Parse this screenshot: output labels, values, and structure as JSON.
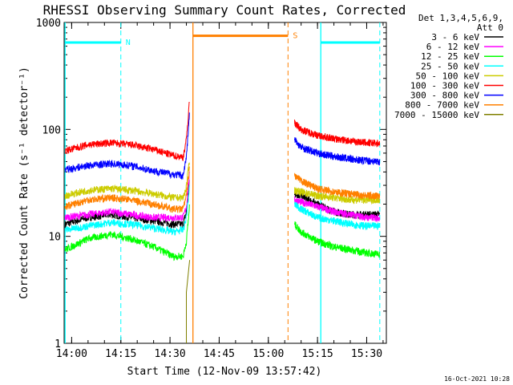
{
  "chart_data": {
    "type": "line",
    "title": "RHESSI Observing Summary Count Rates, Corrected",
    "xlabel": "Start Time (12-Nov-09 13:57:42)",
    "ylabel": "Corrected Count Rate (s⁻¹ detector⁻¹)",
    "y_scale": "log",
    "ylim": [
      1,
      1000
    ],
    "xlim": [
      "13:57:42",
      "15:36:00"
    ],
    "x_ticks": [
      "14:00",
      "14:15",
      "14:30",
      "14:45",
      "15:00",
      "15:15",
      "15:30"
    ],
    "y_ticks": [
      "1",
      "10",
      "100",
      "1000"
    ],
    "grid": false,
    "legend_header": [
      "Det 1,3,4,5,6,9,",
      "Att 0"
    ],
    "legend_placement": "right",
    "footer": "16-Oct-2021 10:28",
    "series": [
      {
        "name": "3 - 6 keV",
        "color": "#000000",
        "before": {
          "x": [
            "13:58",
            "14:05",
            "14:12",
            "14:18",
            "14:25",
            "14:31",
            "14:34",
            "14:35",
            "14:36"
          ],
          "y": [
            13,
            15,
            16,
            15,
            14,
            13,
            13,
            17,
            35
          ]
        },
        "after": {
          "x": [
            "15:08",
            "15:10",
            "15:15",
            "15:20",
            "15:25",
            "15:30",
            "15:34"
          ],
          "y": [
            25,
            24,
            20,
            17,
            16,
            16,
            16
          ]
        }
      },
      {
        "name": "6 - 12 keV",
        "color": "#ff00ff",
        "before": {
          "x": [
            "13:58",
            "14:05",
            "14:12",
            "14:18",
            "14:25",
            "14:31",
            "14:34",
            "14:35",
            "14:36"
          ],
          "y": [
            15,
            16,
            17,
            16,
            15,
            15,
            15,
            19,
            40
          ]
        },
        "after": {
          "x": [
            "15:08",
            "15:10",
            "15:15",
            "15:20",
            "15:25",
            "15:30",
            "15:34"
          ],
          "y": [
            22,
            21,
            19,
            17,
            16,
            15,
            15
          ]
        }
      },
      {
        "name": "12 - 25 keV",
        "color": "#00ff00",
        "before": {
          "x": [
            "13:58",
            "14:05",
            "14:12",
            "14:18",
            "14:25",
            "14:31",
            "14:34",
            "14:35",
            "14:36"
          ],
          "y": [
            7.5,
            9.5,
            10.5,
            9.5,
            8,
            6.5,
            6.5,
            9,
            20
          ]
        },
        "after": {
          "x": [
            "15:08",
            "15:10",
            "15:15",
            "15:20",
            "15:25",
            "15:30",
            "15:34"
          ],
          "y": [
            13,
            11,
            9,
            8,
            7.5,
            7,
            6.8
          ]
        }
      },
      {
        "name": "25 - 50 keV",
        "color": "#00ffff",
        "before": {
          "x": [
            "13:58",
            "14:05",
            "14:12",
            "14:18",
            "14:25",
            "14:31",
            "14:34",
            "14:35",
            "14:36"
          ],
          "y": [
            11.5,
            12.5,
            13.5,
            13,
            12,
            11,
            11.5,
            15,
            30
          ]
        },
        "after": {
          "x": [
            "15:08",
            "15:10",
            "15:15",
            "15:20",
            "15:25",
            "15:30",
            "15:34"
          ],
          "y": [
            20,
            18,
            15,
            14,
            13,
            12.5,
            12.5
          ]
        }
      },
      {
        "name": "50 - 100 keV",
        "color": "#cccc00",
        "before": {
          "x": [
            "13:58",
            "14:05",
            "14:12",
            "14:18",
            "14:25",
            "14:31",
            "14:34",
            "14:35",
            "14:36"
          ],
          "y": [
            24,
            27,
            28,
            27,
            25,
            23,
            23,
            29,
            55
          ]
        },
        "after": {
          "x": [
            "15:08",
            "15:10",
            "15:15",
            "15:20",
            "15:25",
            "15:30",
            "15:34"
          ],
          "y": [
            27,
            26,
            24,
            23,
            22,
            22,
            22
          ]
        }
      },
      {
        "name": "100 - 300 keV",
        "color": "#ff0000",
        "before": {
          "x": [
            "13:58",
            "14:05",
            "14:12",
            "14:18",
            "14:25",
            "14:31",
            "14:34",
            "14:35",
            "14:36"
          ],
          "y": [
            63,
            72,
            75,
            72,
            65,
            57,
            55,
            80,
            200
          ]
        },
        "after": {
          "x": [
            "15:08",
            "15:10",
            "15:15",
            "15:20",
            "15:25",
            "15:30",
            "15:34"
          ],
          "y": [
            115,
            100,
            88,
            82,
            78,
            75,
            74
          ]
        }
      },
      {
        "name": "300 - 800 keV",
        "color": "#0000ff",
        "before": {
          "x": [
            "13:58",
            "14:05",
            "14:12",
            "14:18",
            "14:25",
            "14:31",
            "14:34",
            "14:35",
            "14:36"
          ],
          "y": [
            42,
            46,
            48,
            46,
            41,
            38,
            37,
            55,
            150
          ]
        },
        "after": {
          "x": [
            "15:08",
            "15:10",
            "15:15",
            "15:20",
            "15:25",
            "15:30",
            "15:34"
          ],
          "y": [
            80,
            68,
            60,
            56,
            53,
            51,
            50
          ]
        }
      },
      {
        "name": "800 - 7000 keV",
        "color": "#ff8000",
        "before": {
          "x": [
            "13:58",
            "14:05",
            "14:12",
            "14:18",
            "14:25",
            "14:31",
            "14:34",
            "14:35",
            "14:36"
          ],
          "y": [
            19,
            22,
            23,
            22,
            20,
            18,
            18,
            24,
            45
          ]
        },
        "after": {
          "x": [
            "15:08",
            "15:10",
            "15:15",
            "15:20",
            "15:25",
            "15:30",
            "15:34"
          ],
          "y": [
            37,
            33,
            28,
            26,
            25,
            24,
            24
          ]
        }
      },
      {
        "name": "7000 - 15000 keV",
        "color": "#808000",
        "before": {
          "x": [
            "14:35",
            "14:35",
            "14:36"
          ],
          "y": [
            1,
            3,
            6
          ]
        },
        "after": {
          "x": [],
          "y": []
        }
      }
    ],
    "annotations": [
      {
        "label": "N",
        "color": "#00ffff",
        "span": [
          "13:58",
          "14:15"
        ],
        "level": 650
      },
      {
        "label": "S",
        "color": "#ff8000",
        "span": [
          "14:37",
          "15:06"
        ],
        "level": 750
      },
      {
        "label": "",
        "color": "#00ffff",
        "span": [
          "15:16",
          "15:34"
        ],
        "level": 650
      }
    ]
  }
}
